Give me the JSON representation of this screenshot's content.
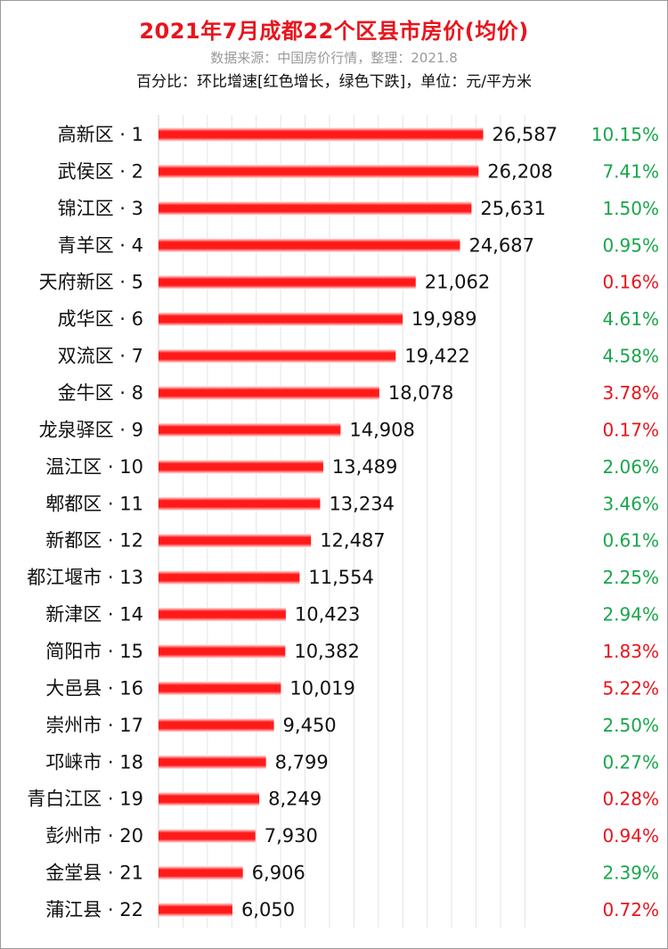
{
  "header": {
    "title": "2021年7月成都22个区县市房价(均价)",
    "source": "数据来源：中国房价行情，整理：2021.8",
    "note": "百分比：环比增速[红色增长，绿色下跌]，单位：元/平方米"
  },
  "colors": {
    "title": "#e8141c",
    "bar": "#ff1a1a",
    "increase": "#e8141c",
    "decrease": "#19a64b",
    "grid": "#e3e3e3"
  },
  "chart_data": {
    "type": "bar",
    "orientation": "horizontal",
    "title": "2021年7月成都22个区县市房价(均价)",
    "unit": "元/平方米",
    "grid": true,
    "xlim": [
      0,
      30000
    ],
    "categories": [
      "高新区 · 1",
      "武侯区 · 2",
      "锦江区 · 3",
      "青羊区 · 4",
      "天府新区 · 5",
      "成华区 · 6",
      "双流区 · 7",
      "金牛区 · 8",
      "龙泉驿区 · 9",
      "温江区 · 10",
      "郫都区 · 11",
      "新都区 · 12",
      "都江堰市 · 13",
      "新津区 · 14",
      "简阳市 · 15",
      "大邑县 · 16",
      "崇州市 · 17",
      "邛崃市 · 18",
      "青白江区 · 19",
      "彭州市 · 20",
      "金堂县 · 21",
      "蒲江县 · 22"
    ],
    "values": [
      26587,
      26208,
      25631,
      24687,
      21062,
      19989,
      19422,
      18078,
      14908,
      13489,
      13234,
      12487,
      11554,
      10423,
      10382,
      10019,
      9450,
      8799,
      8249,
      7930,
      6906,
      6050
    ],
    "value_labels": [
      "26,587",
      "26,208",
      "25,631",
      "24,687",
      "21,062",
      "19,989",
      "19,422",
      "18,078",
      "14,908",
      "13,489",
      "13,234",
      "12,487",
      "11,554",
      "10,423",
      "10,382",
      "10,019",
      "9,450",
      "8,799",
      "8,249",
      "7,930",
      "6,906",
      "6,050"
    ],
    "mom_change": [
      "10.15%",
      "7.41%",
      "1.50%",
      "0.95%",
      "0.16%",
      "4.61%",
      "4.58%",
      "3.78%",
      "0.17%",
      "2.06%",
      "3.46%",
      "0.61%",
      "2.25%",
      "2.94%",
      "1.83%",
      "5.22%",
      "2.50%",
      "0.27%",
      "0.28%",
      "0.94%",
      "2.39%",
      "0.72%"
    ],
    "mom_direction": [
      "down",
      "down",
      "down",
      "down",
      "up",
      "down",
      "down",
      "up",
      "up",
      "down",
      "down",
      "down",
      "down",
      "down",
      "up",
      "up",
      "down",
      "down",
      "up",
      "up",
      "down",
      "up"
    ]
  }
}
